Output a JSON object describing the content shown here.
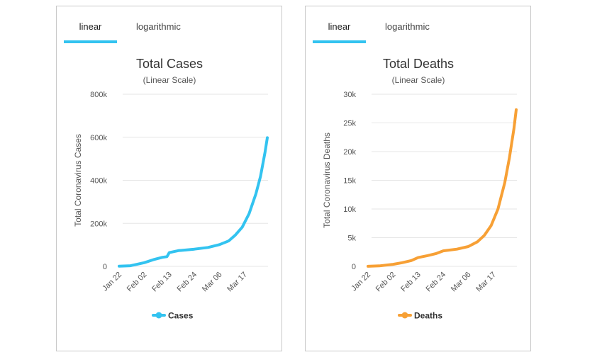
{
  "panels": [
    {
      "tabs": [
        {
          "label": "linear",
          "active": true
        },
        {
          "label": "logarithmic",
          "active": false
        }
      ],
      "accent_color": "#33c3f0"
    },
    {
      "tabs": [
        {
          "label": "linear",
          "active": true
        },
        {
          "label": "logarithmic",
          "active": false
        }
      ],
      "accent_color": "#33c3f0"
    }
  ],
  "chart_data": [
    {
      "type": "line",
      "title": "Total Cases",
      "subtitle": "(Linear Scale)",
      "xlabel": "",
      "ylabel": "Total Coronavirus Cases",
      "x_tick_labels": [
        "Jan 22",
        "Feb 02",
        "Feb 13",
        "Feb 24",
        "Mar 06",
        "Mar 17"
      ],
      "y_tick_labels": [
        "0",
        "200k",
        "400k",
        "600k",
        "800k"
      ],
      "ylim": [
        0,
        800000
      ],
      "grid": true,
      "legend_position": "bottom",
      "series": [
        {
          "name": "Cases",
          "color": "#33c3f0",
          "points": [
            [
              "Jan 22",
              580
            ],
            [
              "Jan 27",
              2900
            ],
            [
              "Feb 02",
              17000
            ],
            [
              "Feb 06",
              31000
            ],
            [
              "Feb 10",
              42000
            ],
            [
              "Feb 12",
              45000
            ],
            [
              "Feb 13",
              64000
            ],
            [
              "Feb 17",
              73000
            ],
            [
              "Feb 24",
              80000
            ],
            [
              "Mar 01",
              88000
            ],
            [
              "Mar 06",
              101000
            ],
            [
              "Mar 10",
              118000
            ],
            [
              "Mar 13",
              146000
            ],
            [
              "Mar 16",
              182000
            ],
            [
              "Mar 19",
              245000
            ],
            [
              "Mar 22",
              337000
            ],
            [
              "Mar 24",
              418000
            ],
            [
              "Mar 26",
              531000
            ],
            [
              "Mar 27",
              598000
            ]
          ]
        }
      ]
    },
    {
      "type": "line",
      "title": "Total Deaths",
      "subtitle": "(Linear Scale)",
      "xlabel": "",
      "ylabel": "Total Coronavirus Deaths",
      "x_tick_labels": [
        "Jan 22",
        "Feb 02",
        "Feb 13",
        "Feb 24",
        "Mar 06",
        "Mar 17"
      ],
      "y_tick_labels": [
        "0",
        "5k",
        "10k",
        "15k",
        "20k",
        "25k",
        "30k"
      ],
      "ylim": [
        0,
        30000
      ],
      "grid": true,
      "legend_position": "bottom",
      "series": [
        {
          "name": "Deaths",
          "color": "#f7a035",
          "points": [
            [
              "Jan 22",
              17
            ],
            [
              "Jan 27",
              82
            ],
            [
              "Feb 02",
              362
            ],
            [
              "Feb 06",
              637
            ],
            [
              "Feb 10",
              1018
            ],
            [
              "Feb 13",
              1526
            ],
            [
              "Feb 17",
              1870
            ],
            [
              "Feb 21",
              2250
            ],
            [
              "Feb 24",
              2700
            ],
            [
              "Mar 01",
              3000
            ],
            [
              "Mar 06",
              3460
            ],
            [
              "Mar 10",
              4280
            ],
            [
              "Mar 13",
              5400
            ],
            [
              "Mar 16",
              7100
            ],
            [
              "Mar 19",
              10000
            ],
            [
              "Mar 22",
              14600
            ],
            [
              "Mar 24",
              18900
            ],
            [
              "Mar 26",
              24000
            ],
            [
              "Mar 27",
              27300
            ]
          ]
        }
      ]
    }
  ]
}
